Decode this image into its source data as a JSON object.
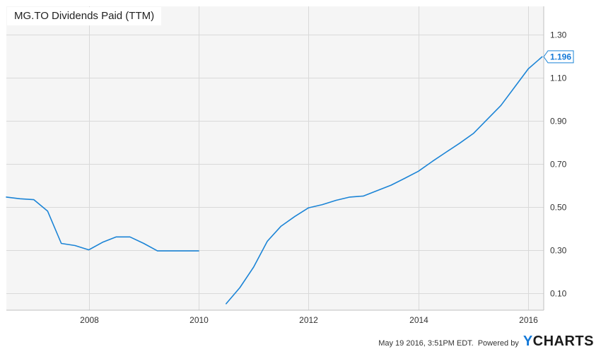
{
  "title": "MG.TO Dividends Paid (TTM)",
  "footer": {
    "timestamp": "May 19 2016, 3:51PM EDT.",
    "powered_by": "Powered by",
    "logo_y": "Y",
    "logo_rest": "CHARTS"
  },
  "colors": {
    "series": "#1b84d6",
    "label_text": "#1479d8"
  },
  "chart_data": {
    "type": "line",
    "title": "MG.TO Dividends Paid (TTM)",
    "xlabel": "",
    "ylabel": "",
    "grid": true,
    "x_ticks": [
      "2008",
      "2010",
      "2012",
      "2014",
      "2016"
    ],
    "y_ticks": [
      "0.10",
      "0.30",
      "0.50",
      "0.70",
      "0.90",
      "1.10",
      "1.30"
    ],
    "ylim": [
      0.02,
      1.43
    ],
    "xlim": [
      2006.5,
      2016.28
    ],
    "last_value_label": "1.196",
    "series": [
      {
        "segments": [
          [
            [
              2006.5,
              0.545
            ],
            [
              2006.75,
              0.537
            ],
            [
              2007.0,
              0.533
            ],
            [
              2007.25,
              0.48
            ],
            [
              2007.5,
              0.33
            ],
            [
              2007.75,
              0.32
            ],
            [
              2008.0,
              0.3
            ],
            [
              2008.25,
              0.335
            ],
            [
              2008.5,
              0.36
            ],
            [
              2008.75,
              0.36
            ],
            [
              2009.0,
              0.33
            ],
            [
              2009.25,
              0.295
            ],
            [
              2009.5,
              0.295
            ],
            [
              2009.75,
              0.295
            ],
            [
              2010.0,
              0.295
            ]
          ],
          [
            [
              2010.5,
              0.05
            ],
            [
              2010.75,
              0.125
            ],
            [
              2011.0,
              0.22
            ],
            [
              2011.25,
              0.34
            ],
            [
              2011.5,
              0.41
            ],
            [
              2011.75,
              0.455
            ],
            [
              2012.0,
              0.495
            ],
            [
              2012.25,
              0.51
            ],
            [
              2012.5,
              0.53
            ],
            [
              2012.75,
              0.545
            ],
            [
              2013.0,
              0.55
            ],
            [
              2013.25,
              0.575
            ],
            [
              2013.5,
              0.6
            ],
            [
              2013.75,
              0.632
            ],
            [
              2014.0,
              0.665
            ],
            [
              2014.25,
              0.71
            ],
            [
              2014.5,
              0.753
            ],
            [
              2014.75,
              0.795
            ],
            [
              2015.0,
              0.84
            ],
            [
              2015.25,
              0.905
            ],
            [
              2015.5,
              0.97
            ],
            [
              2015.75,
              1.055
            ],
            [
              2016.0,
              1.14
            ],
            [
              2016.25,
              1.196
            ]
          ]
        ]
      }
    ]
  }
}
